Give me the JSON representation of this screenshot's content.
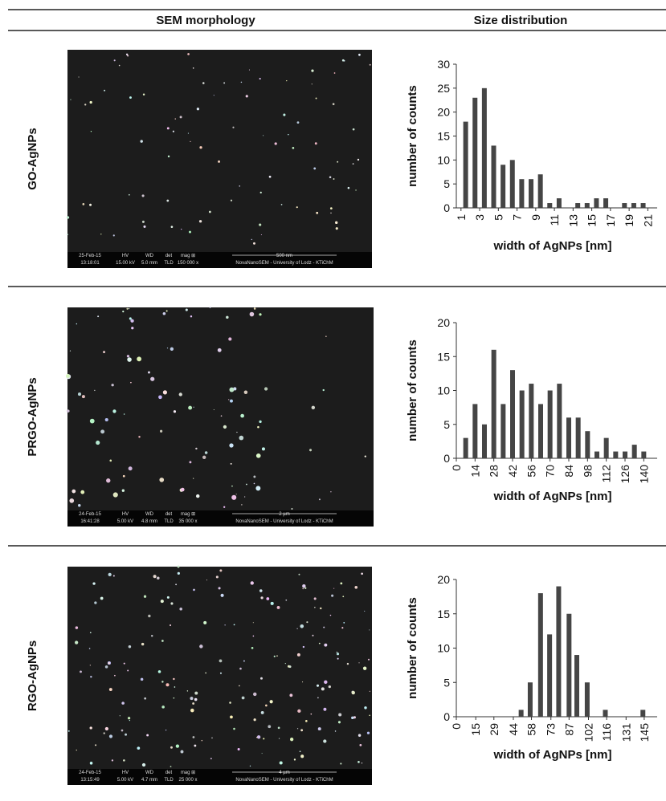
{
  "header": {
    "sem": "SEM morphology",
    "dist": "Size distribution"
  },
  "rows": [
    {
      "label": "GO-AgNPs",
      "sem": {
        "date": "25-Feb-15",
        "time": "13:18:01",
        "hv_label": "HV",
        "hv": "15.00 kV",
        "wd_label": "WD",
        "wd": "5.0 mm",
        "det_label": "det",
        "det": "TLD",
        "mag_label": "mag ⊞",
        "mag": "150 000 x",
        "scale": "500 nm",
        "instrument": "NovaNanoSEM - University of Lodz - KTiChM"
      }
    },
    {
      "label": "PRGO-AgNPs",
      "sem": {
        "date": "24-Feb-15",
        "time": "16:41:28",
        "hv_label": "HV",
        "hv": "5.00 kV",
        "wd_label": "WD",
        "wd": "4.8 mm",
        "det_label": "det",
        "det": "TLD",
        "mag_label": "mag ⊞",
        "mag": "35 000 x",
        "scale": "2 µm",
        "instrument": "NovaNanoSEM - University of Lodz - KTiChM"
      }
    },
    {
      "label": "RGO-AgNPs",
      "sem": {
        "date": "24-Feb-15",
        "time": "13:15:49",
        "hv_label": "HV",
        "hv": "5.00 kV",
        "wd_label": "WD",
        "wd": "4.7 mm",
        "det_label": "det",
        "det": "TLD",
        "mag_label": "mag ⊞",
        "mag": "25 000 x",
        "scale": "4 µm",
        "instrument": "NovaNanoSEM - University of Lodz - KTiChM"
      }
    }
  ],
  "chart_data": [
    {
      "type": "bar",
      "x_label": "width of AgNPs [nm]",
      "y_label": "number of counts",
      "color": "#454545",
      "x": [
        1.5,
        2.5,
        3.5,
        4.5,
        5.5,
        6.5,
        7.5,
        8.5,
        9.5,
        10.5,
        11.5,
        12.5,
        13.5,
        14.5,
        15.5,
        16.5,
        17.5,
        18.5,
        19.5,
        20.5
      ],
      "values": [
        18,
        23,
        25,
        13,
        9,
        10,
        6,
        6,
        7,
        1,
        2,
        0,
        1,
        1,
        2,
        2,
        0,
        1,
        1,
        1
      ],
      "xlim": [
        0.5,
        22
      ],
      "xticks": [
        1,
        3,
        5,
        7,
        9,
        11,
        13,
        15,
        17,
        19,
        21
      ],
      "ylim": [
        0,
        30
      ],
      "yticks": [
        0,
        5,
        10,
        15,
        20,
        25,
        30
      ]
    },
    {
      "type": "bar",
      "x_label": "width of AgNPs [nm]",
      "y_label": "number of counts",
      "color": "#454545",
      "x": [
        7,
        14,
        21,
        28,
        35,
        42,
        49,
        56,
        63,
        70,
        77,
        84,
        91,
        98,
        105,
        112,
        119,
        126,
        133,
        140
      ],
      "values": [
        3,
        8,
        5,
        16,
        8,
        13,
        10,
        11,
        8,
        10,
        11,
        6,
        6,
        4,
        1,
        3,
        1,
        1,
        2,
        1
      ],
      "xlim": [
        0,
        150
      ],
      "xticks": [
        0,
        14,
        28,
        42,
        56,
        70,
        84,
        98,
        112,
        126,
        140
      ],
      "ylim": [
        0,
        20
      ],
      "yticks": [
        0,
        5,
        10,
        15,
        20
      ]
    },
    {
      "type": "bar",
      "x_label": "width of AgNPs [nm]",
      "y_label": "number of counts",
      "color": "#454545",
      "x": [
        50,
        57,
        65,
        72,
        79,
        87,
        93,
        101,
        115,
        144
      ],
      "values": [
        1,
        5,
        18,
        12,
        19,
        15,
        9,
        5,
        1,
        1
      ],
      "xlim": [
        0,
        155
      ],
      "xticks": [
        0,
        15,
        29,
        44,
        58,
        73,
        87,
        102,
        116,
        131,
        145
      ],
      "ylim": [
        0,
        20
      ],
      "yticks": [
        0,
        5,
        10,
        15,
        20
      ]
    }
  ]
}
